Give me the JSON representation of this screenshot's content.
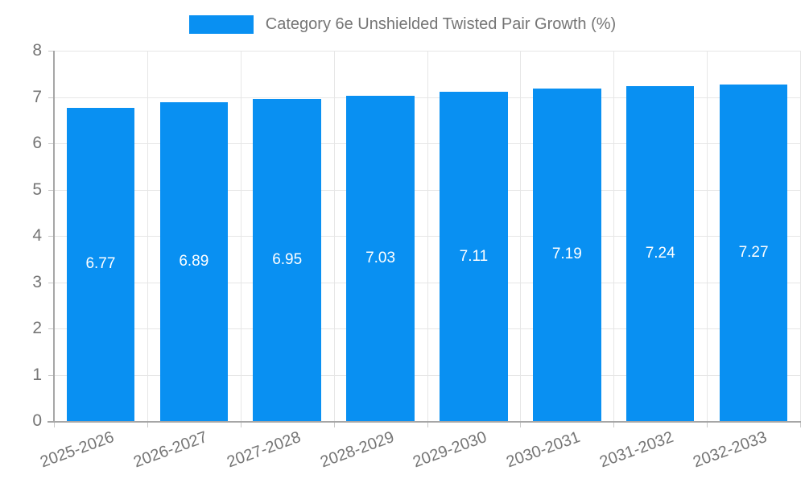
{
  "chart_data": {
    "type": "bar",
    "title": "Category 6e Unshielded Twisted Pair Growth (%)",
    "categories": [
      "2025-2026",
      "2026-2027",
      "2027-2028",
      "2028-2029",
      "2029-2030",
      "2030-2031",
      "2031-2032",
      "2032-2033"
    ],
    "values": [
      6.77,
      6.89,
      6.95,
      7.03,
      7.11,
      7.19,
      7.24,
      7.27
    ],
    "value_labels": [
      "6.77",
      "6.89",
      "6.95",
      "7.03",
      "7.11",
      "7.19",
      "7.24",
      "7.27"
    ],
    "xlabel": "",
    "ylabel": "",
    "ylim": [
      0,
      8
    ],
    "yticks": [
      0,
      1,
      2,
      3,
      4,
      5,
      6,
      7,
      8
    ],
    "grid": true,
    "legend_position": "top",
    "colors": {
      "bar": "#0990f2",
      "grid": "#e6e6e6",
      "axis": "#a6a6a6",
      "tick": "#c9c9c9",
      "tick_text": "#757575",
      "title_text": "#757575",
      "value_text": "#ffffff",
      "background": "#ffffff"
    }
  }
}
